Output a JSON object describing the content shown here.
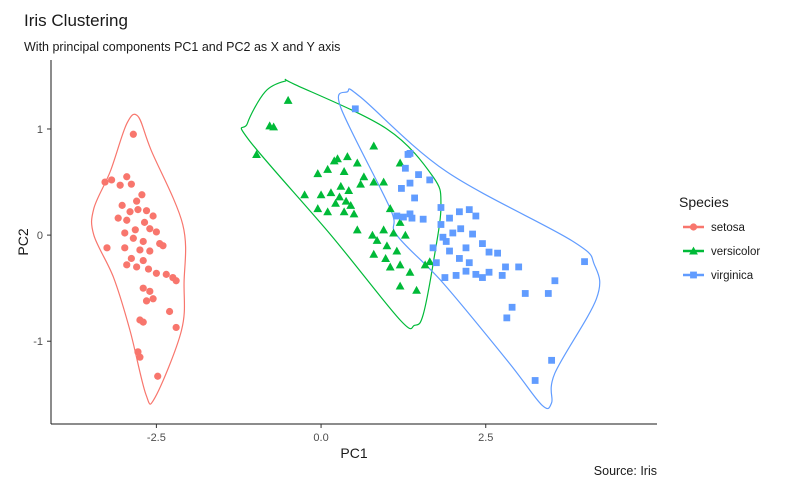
{
  "chart_data": {
    "type": "scatter",
    "title": "Iris Clustering",
    "subtitle": "With principal components PC1 and PC2 as X and Y axis",
    "xlabel": "PC1",
    "ylabel": "PC2",
    "caption": "Source: Iris",
    "xlim": [
      -4.1,
      5.1
    ],
    "ylim": [
      -1.78,
      1.65
    ],
    "x_ticks": [
      -2.5,
      0.0,
      2.5
    ],
    "x_tick_labels": [
      "-2.5",
      "0.0",
      "2.5"
    ],
    "y_ticks": [
      -1,
      0,
      1
    ],
    "y_tick_labels": [
      "-1",
      "0",
      "1"
    ],
    "grid": false,
    "legend": {
      "title": "Species",
      "position": "right"
    },
    "series": [
      {
        "name": "setosa",
        "color": "#F8766D",
        "shape": "circle",
        "hull": [
          [
            -2.78,
            1.12
          ],
          [
            -2.58,
            0.8
          ],
          [
            -2.1,
            0.1
          ],
          [
            -2.08,
            -0.45
          ],
          [
            -2.12,
            -0.9
          ],
          [
            -2.52,
            -1.53
          ],
          [
            -2.66,
            -1.5
          ],
          [
            -2.9,
            -0.9
          ],
          [
            -3.15,
            -0.4
          ],
          [
            -3.45,
            0.0
          ],
          [
            -3.45,
            0.25
          ],
          [
            -3.2,
            0.6
          ],
          [
            -2.95,
            1.05
          ]
        ],
        "points": [
          [
            -2.85,
            0.95
          ],
          [
            -3.18,
            0.52
          ],
          [
            -2.95,
            0.55
          ],
          [
            -3.05,
            0.47
          ],
          [
            -2.88,
            0.48
          ],
          [
            -3.28,
            0.5
          ],
          [
            -3.02,
            0.28
          ],
          [
            -2.8,
            0.32
          ],
          [
            -2.72,
            0.38
          ],
          [
            -2.78,
            0.24
          ],
          [
            -2.65,
            0.23
          ],
          [
            -2.9,
            0.22
          ],
          [
            -2.55,
            0.18
          ],
          [
            -3.08,
            0.16
          ],
          [
            -2.95,
            0.14
          ],
          [
            -2.68,
            0.12
          ],
          [
            -2.82,
            0.05
          ],
          [
            -2.6,
            0.06
          ],
          [
            -2.5,
            0.03
          ],
          [
            -2.98,
            0.02
          ],
          [
            -2.85,
            -0.03
          ],
          [
            -2.7,
            -0.06
          ],
          [
            -2.45,
            -0.08
          ],
          [
            -2.4,
            -0.1
          ],
          [
            -3.25,
            -0.12
          ],
          [
            -2.98,
            -0.12
          ],
          [
            -2.75,
            -0.14
          ],
          [
            -2.6,
            -0.15
          ],
          [
            -2.88,
            -0.22
          ],
          [
            -2.7,
            -0.24
          ],
          [
            -2.95,
            -0.28
          ],
          [
            -2.8,
            -0.3
          ],
          [
            -2.62,
            -0.32
          ],
          [
            -2.5,
            -0.36
          ],
          [
            -2.35,
            -0.37
          ],
          [
            -2.25,
            -0.4
          ],
          [
            -2.2,
            -0.43
          ],
          [
            -2.7,
            -0.5
          ],
          [
            -2.6,
            -0.53
          ],
          [
            -2.55,
            -0.6
          ],
          [
            -2.65,
            -0.62
          ],
          [
            -2.3,
            -0.72
          ],
          [
            -2.75,
            -0.8
          ],
          [
            -2.7,
            -0.82
          ],
          [
            -2.2,
            -0.87
          ],
          [
            -2.78,
            -1.1
          ],
          [
            -2.75,
            -1.15
          ],
          [
            -2.48,
            -1.33
          ]
        ]
      },
      {
        "name": "versicolor",
        "color": "#00BA38",
        "shape": "triangle",
        "hull": [
          [
            -0.85,
            1.35
          ],
          [
            -0.55,
            1.45
          ],
          [
            -0.4,
            1.42
          ],
          [
            1.0,
            1.0
          ],
          [
            1.7,
            0.55
          ],
          [
            1.82,
            0.28
          ],
          [
            1.72,
            -0.2
          ],
          [
            1.55,
            -0.75
          ],
          [
            1.42,
            -0.85
          ],
          [
            1.2,
            -0.8
          ],
          [
            0.15,
            0.0
          ],
          [
            -1.1,
            0.9
          ],
          [
            -1.12,
            1.05
          ]
        ],
        "points": [
          [
            -0.5,
            1.27
          ],
          [
            -0.78,
            1.03
          ],
          [
            -0.72,
            1.02
          ],
          [
            -0.98,
            0.76
          ],
          [
            0.8,
            0.84
          ],
          [
            0.2,
            0.7
          ],
          [
            0.4,
            0.74
          ],
          [
            0.25,
            0.72
          ],
          [
            0.55,
            0.68
          ],
          [
            0.35,
            0.6
          ],
          [
            0.1,
            0.62
          ],
          [
            -0.05,
            0.58
          ],
          [
            0.65,
            0.55
          ],
          [
            1.2,
            0.68
          ],
          [
            0.6,
            0.48
          ],
          [
            0.8,
            0.5
          ],
          [
            0.95,
            0.5
          ],
          [
            0.3,
            0.46
          ],
          [
            0.42,
            0.42
          ],
          [
            -0.25,
            0.38
          ],
          [
            0.0,
            0.38
          ],
          [
            0.15,
            0.4
          ],
          [
            0.28,
            0.36
          ],
          [
            0.38,
            0.32
          ],
          [
            0.22,
            0.3
          ],
          [
            0.45,
            0.28
          ],
          [
            -0.05,
            0.25
          ],
          [
            0.1,
            0.22
          ],
          [
            0.35,
            0.22
          ],
          [
            0.5,
            0.2
          ],
          [
            1.05,
            0.25
          ],
          [
            1.2,
            0.12
          ],
          [
            0.55,
            0.05
          ],
          [
            0.78,
            0.0
          ],
          [
            0.95,
            0.05
          ],
          [
            1.1,
            0.02
          ],
          [
            1.28,
            0.0
          ],
          [
            0.85,
            -0.05
          ],
          [
            1.0,
            -0.1
          ],
          [
            1.15,
            -0.15
          ],
          [
            0.8,
            -0.18
          ],
          [
            0.98,
            -0.22
          ],
          [
            1.2,
            -0.28
          ],
          [
            1.05,
            -0.3
          ],
          [
            1.35,
            -0.35
          ],
          [
            1.58,
            -0.28
          ],
          [
            1.65,
            -0.25
          ],
          [
            1.2,
            -0.48
          ],
          [
            1.45,
            -0.52
          ]
        ]
      },
      {
        "name": "virginica",
        "color": "#619CFF",
        "shape": "square",
        "hull": [
          [
            0.4,
            1.35
          ],
          [
            0.6,
            1.3
          ],
          [
            1.9,
            0.6
          ],
          [
            3.8,
            -0.05
          ],
          [
            4.15,
            -0.28
          ],
          [
            4.18,
            -0.6
          ],
          [
            3.55,
            -1.3
          ],
          [
            3.5,
            -1.58
          ],
          [
            3.35,
            -1.6
          ],
          [
            2.85,
            -1.2
          ],
          [
            1.85,
            -0.45
          ],
          [
            1.15,
            0.0
          ],
          [
            1.05,
            0.25
          ],
          [
            0.3,
            1.2
          ]
        ],
        "points": [
          [
            0.52,
            1.19
          ],
          [
            1.35,
            0.77
          ],
          [
            1.32,
            0.76
          ],
          [
            1.28,
            0.63
          ],
          [
            1.48,
            0.57
          ],
          [
            1.65,
            0.52
          ],
          [
            1.35,
            0.49
          ],
          [
            1.22,
            0.44
          ],
          [
            1.42,
            0.35
          ],
          [
            1.82,
            0.26
          ],
          [
            2.1,
            0.22
          ],
          [
            2.25,
            0.24
          ],
          [
            1.35,
            0.2
          ],
          [
            1.15,
            0.18
          ],
          [
            1.25,
            0.17
          ],
          [
            1.38,
            0.16
          ],
          [
            1.55,
            0.15
          ],
          [
            1.95,
            0.16
          ],
          [
            2.35,
            0.18
          ],
          [
            1.82,
            0.1
          ],
          [
            2.12,
            0.06
          ],
          [
            2.0,
            0.02
          ],
          [
            2.3,
            0.01
          ],
          [
            1.85,
            -0.02
          ],
          [
            1.9,
            -0.06
          ],
          [
            2.45,
            -0.08
          ],
          [
            1.7,
            -0.12
          ],
          [
            1.95,
            -0.15
          ],
          [
            2.2,
            -0.12
          ],
          [
            2.55,
            -0.16
          ],
          [
            2.68,
            -0.17
          ],
          [
            2.1,
            -0.22
          ],
          [
            2.25,
            -0.26
          ],
          [
            1.75,
            -0.26
          ],
          [
            2.8,
            -0.3
          ],
          [
            3.0,
            -0.3
          ],
          [
            2.2,
            -0.34
          ],
          [
            2.55,
            -0.35
          ],
          [
            2.35,
            -0.37
          ],
          [
            1.88,
            -0.4
          ],
          [
            2.05,
            -0.38
          ],
          [
            2.45,
            -0.4
          ],
          [
            2.75,
            -0.38
          ],
          [
            3.55,
            -0.43
          ],
          [
            3.1,
            -0.55
          ],
          [
            3.45,
            -0.55
          ],
          [
            2.9,
            -0.68
          ],
          [
            2.82,
            -0.78
          ],
          [
            3.5,
            -1.18
          ],
          [
            3.25,
            -1.37
          ],
          [
            4.0,
            -0.25
          ]
        ]
      }
    ]
  }
}
